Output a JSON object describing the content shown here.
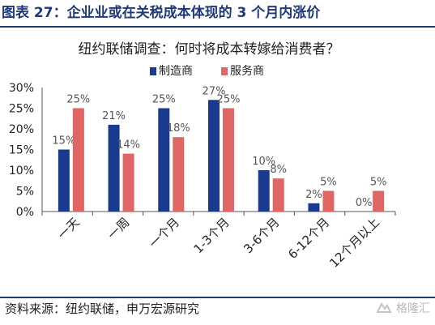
{
  "header": {
    "title": "图表 27：企业业或在关税成本体现的 3 个月内涨价"
  },
  "footer": {
    "source": "资料来源：纽约联储，申万宏源研究",
    "watermark": "格隆汇"
  },
  "colors": {
    "series1": "#1a3a8f",
    "series2": "#e06666",
    "title": "#1f3a7a",
    "axis": "#555555"
  },
  "chart_data": {
    "type": "bar",
    "title": "纽约联储调查：何时将成本转嫁给消费者？",
    "categories": [
      "一天",
      "一周",
      "一个月",
      "1-3个月",
      "3-6个月",
      "6-12个月",
      "12个月以上"
    ],
    "series": [
      {
        "name": "制造商",
        "values": [
          15,
          21,
          25,
          27,
          10,
          2,
          0
        ]
      },
      {
        "name": "服务商",
        "values": [
          25,
          14,
          18,
          25,
          8,
          5,
          5
        ]
      }
    ],
    "ylim": [
      0,
      30
    ],
    "yticks": [
      "0%",
      "5%",
      "10%",
      "15%",
      "20%",
      "25%",
      "30%"
    ],
    "legend": "top-center",
    "grid": false
  }
}
